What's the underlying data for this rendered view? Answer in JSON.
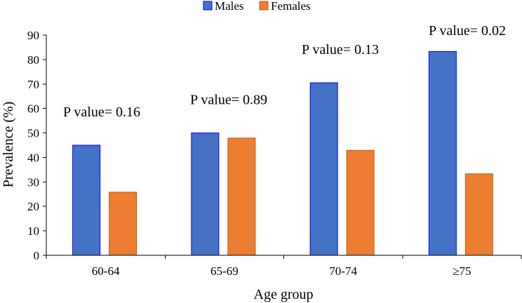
{
  "chart_data": {
    "type": "bar",
    "title": "",
    "xlabel": "Age group",
    "ylabel": "Prevalence (%)",
    "ylim": [
      0,
      90
    ],
    "yticks": [
      0,
      10,
      20,
      30,
      40,
      50,
      60,
      70,
      80,
      90
    ],
    "grid": false,
    "legend_position": "top-center",
    "categories": [
      "60-64",
      "65-69",
      "70-74",
      "≥75"
    ],
    "series": [
      {
        "name": "Males",
        "values": [
          45,
          50,
          70.5,
          83.3
        ],
        "color": "#4472C4",
        "edge_color": "#0000FF"
      },
      {
        "name": "Females",
        "values": [
          25.8,
          47.9,
          42.9,
          33.3
        ],
        "color": "#ED7D31",
        "edge_color": "#C55A11"
      }
    ],
    "annotations": [
      {
        "category": "60-64",
        "text": "P value= 0.16"
      },
      {
        "category": "65-69",
        "text": "P value= 0.89"
      },
      {
        "category": "70-74",
        "text": "P value= 0.13"
      },
      {
        "category": "≥75",
        "text": "P value= 0.02"
      }
    ]
  }
}
